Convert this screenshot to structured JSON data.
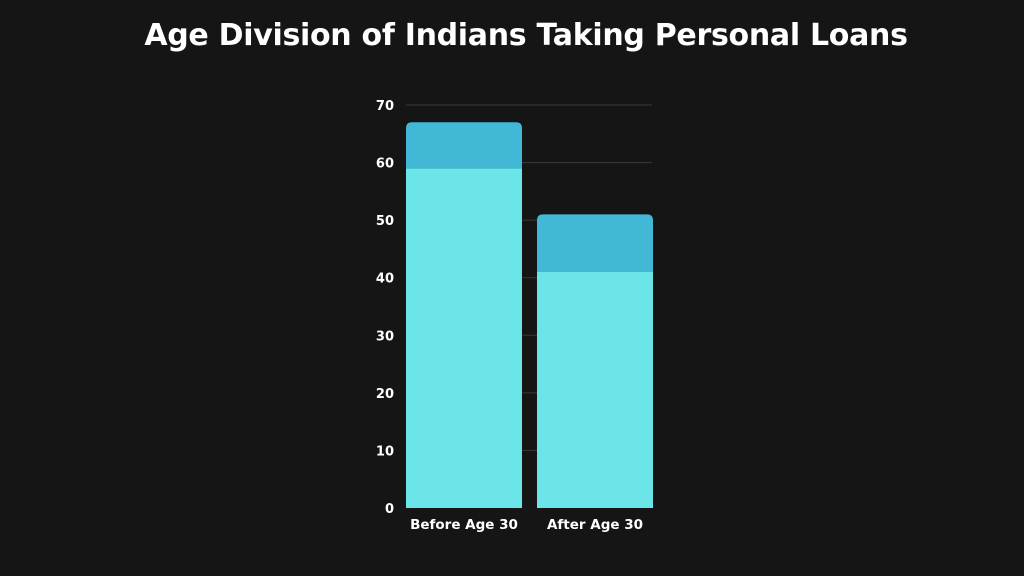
{
  "chart_data": {
    "type": "bar",
    "stacked": true,
    "title": "Age Division of Indians Taking Personal Loans",
    "categories": [
      "Before Age 30",
      "After Age 30"
    ],
    "series": [
      {
        "values": [
          59,
          41
        ],
        "color": "#6ce5e8"
      },
      {
        "values": [
          8,
          10
        ],
        "color": "#40b8d6"
      }
    ],
    "ylim": [
      0,
      70
    ],
    "yticks": [
      0,
      10,
      20,
      30,
      40,
      50,
      60,
      70
    ],
    "grid": true,
    "legend": "none"
  }
}
